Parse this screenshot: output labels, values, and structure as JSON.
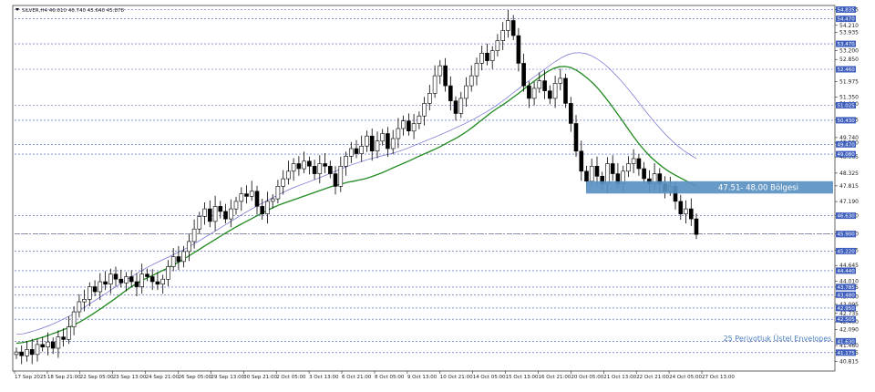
{
  "chart_data": {
    "type": "candlestick",
    "symbol_info": "SILVER,H4  46.610 46.740 45.640 45.878",
    "ylim": [
      40.515,
      55.0
    ],
    "price_ticks": [
      "54.835",
      "54.210",
      "53.935",
      "53.200",
      "52.850",
      "51.975",
      "51.350",
      "51.080",
      "50.445",
      "49.740",
      "49.530",
      "48.965",
      "48.325",
      "47.815",
      "47.190",
      "46.630",
      "45.900",
      "45.245",
      "44.645",
      "44.010",
      "43.785",
      "43.400",
      "43.095",
      "42.735",
      "42.400",
      "42.090",
      "41.460",
      "41.175",
      "40.815"
    ],
    "level_lines": [
      {
        "price": 54.835,
        "label": "54.835"
      },
      {
        "price": 54.47,
        "label": "54.470"
      },
      {
        "price": 53.47,
        "label": "53.470"
      },
      {
        "price": 52.46,
        "label": "52.460"
      },
      {
        "price": 51.025,
        "label": "51.025"
      },
      {
        "price": 50.43,
        "label": "50.430"
      },
      {
        "price": 49.47,
        "label": "49.470"
      },
      {
        "price": 49.08,
        "label": "49.080"
      },
      {
        "price": 46.63,
        "label": "46.630"
      },
      {
        "price": 45.9,
        "label": "45.900"
      },
      {
        "price": 45.22,
        "label": "45.220"
      },
      {
        "price": 44.44,
        "label": "44.440"
      },
      {
        "price": 43.785,
        "label": "43.785"
      },
      {
        "price": 43.48,
        "label": "43.480"
      },
      {
        "price": 42.95,
        "label": "42.950"
      },
      {
        "price": 42.505,
        "label": "42.505"
      },
      {
        "price": 41.63,
        "label": "41.630"
      },
      {
        "price": 41.175,
        "label": "41.175"
      }
    ],
    "current_price": 45.9,
    "time_labels": [
      "17 Sep 2025",
      "18 Sep 21:00",
      "22 Sep 05:00",
      "23 Sep 13:00",
      "24 Sep 21:00",
      "26 Sep 05:00",
      "29 Sep 13:00",
      "30 Sep 21:00",
      "2 Oct 05:00",
      "3 Oct 13:00",
      "6 Oct 21:00",
      "8 Oct 05:00",
      "9 Oct 13:00",
      "10 Oct 21:00",
      "14 Oct 05:00",
      "15 Oct 13:00",
      "16 Oct 21:00",
      "20 Oct 05:00",
      "21 Oct 13:00",
      "22 Oct 21:00",
      "24 Oct 05:00",
      "27 Oct 13:00"
    ],
    "zone": {
      "label": "47.51- 48,00 Bölgesi",
      "low": 47.51,
      "high": 48.0
    },
    "envelope_label": "25 Periyotluk Üstel Envelopes",
    "closes": [
      41.2,
      41.05,
      41.3,
      41.1,
      41.5,
      41.4,
      41.6,
      41.35,
      41.8,
      41.7,
      42.2,
      42.8,
      43.2,
      43.3,
      43.8,
      43.6,
      44.0,
      43.9,
      44.3,
      44.1,
      43.95,
      44.2,
      44.0,
      43.8,
      44.3,
      44.2,
      44.0,
      43.9,
      44.1,
      44.6,
      45.0,
      44.8,
      45.2,
      45.6,
      46.1,
      46.6,
      46.9,
      46.4,
      47.0,
      46.8,
      46.5,
      46.9,
      47.2,
      47.5,
      47.4,
      47.6,
      47.0,
      46.7,
      47.2,
      47.3,
      47.8,
      48.1,
      48.4,
      48.7,
      48.5,
      48.8,
      48.6,
      48.3,
      48.7,
      48.6,
      48.3,
      47.8,
      48.6,
      49.0,
      49.3,
      49.1,
      49.4,
      49.8,
      49.2,
      49.6,
      49.9,
      49.3,
      49.7,
      50.1,
      50.4,
      50.0,
      50.3,
      50.6,
      51.1,
      51.5,
      52.2,
      52.6,
      51.8,
      51.2,
      50.7,
      51.3,
      51.8,
      52.2,
      52.7,
      53.1,
      52.8,
      53.2,
      53.6,
      54.0,
      54.4,
      53.8,
      52.7,
      51.8,
      51.3,
      51.7,
      52.0,
      51.6,
      51.3,
      51.9,
      52.1,
      51.1,
      50.3,
      49.2,
      48.4,
      48.0,
      48.6,
      48.2,
      47.9,
      48.7,
      48.3,
      47.9,
      48.4,
      48.7,
      48.9,
      48.5,
      48.1,
      47.9,
      48.3,
      47.9,
      47.6,
      47.8,
      47.2,
      46.7,
      46.9,
      46.5,
      45.88
    ],
    "ema_inner": [
      41.55,
      41.57,
      41.62,
      41.68,
      41.75,
      41.82,
      41.9,
      41.98,
      42.07,
      42.16,
      42.27,
      42.39,
      42.52,
      42.66,
      42.81,
      42.96,
      43.12,
      43.28,
      43.45,
      43.62,
      43.78,
      43.92,
      44.05,
      44.16,
      44.27,
      44.38,
      44.49,
      44.61,
      44.73,
      44.86,
      45.0,
      45.14,
      45.28,
      45.43,
      45.57,
      45.71,
      45.85,
      45.99,
      46.12,
      46.25,
      46.37,
      46.49,
      46.61,
      46.73,
      46.85,
      46.96,
      47.06,
      47.14,
      47.22,
      47.3,
      47.38,
      47.46,
      47.54,
      47.62,
      47.7,
      47.78,
      47.84,
      47.9,
      47.96,
      48.0,
      48.05,
      48.1,
      48.17,
      48.25,
      48.34,
      48.44,
      48.54,
      48.64,
      48.74,
      48.84,
      48.95,
      49.05,
      49.15,
      49.25,
      49.36,
      49.48,
      49.6,
      49.72,
      49.86,
      50.01,
      50.18,
      50.36,
      50.54,
      50.72,
      50.88,
      51.03,
      51.18,
      51.35,
      51.52,
      51.7,
      51.88,
      52.05,
      52.22,
      52.37,
      52.49,
      52.56,
      52.57,
      52.53,
      52.42,
      52.27,
      52.09,
      51.88,
      51.64,
      51.36,
      51.06,
      50.75,
      50.43,
      50.1,
      49.78,
      49.48,
      49.21,
      48.97,
      48.77,
      48.58,
      48.42,
      48.28,
      48.16,
      48.04,
      47.92,
      47.8
    ],
    "ema_outer": [
      41.9,
      41.92,
      41.98,
      42.05,
      42.13,
      42.22,
      42.32,
      42.43,
      42.55,
      42.68,
      42.82,
      42.97,
      43.12,
      43.28,
      43.44,
      43.6,
      43.76,
      43.92,
      44.08,
      44.23,
      44.38,
      44.52,
      44.65,
      44.77,
      44.89,
      45.0,
      45.12,
      45.24,
      45.37,
      45.51,
      45.65,
      45.8,
      45.95,
      46.1,
      46.25,
      46.4,
      46.55,
      46.7,
      46.84,
      46.98,
      47.11,
      47.24,
      47.37,
      47.49,
      47.61,
      47.72,
      47.82,
      47.91,
      48.0,
      48.09,
      48.19,
      48.29,
      48.39,
      48.49,
      48.59,
      48.68,
      48.76,
      48.84,
      48.91,
      48.97,
      49.03,
      49.09,
      49.16,
      49.24,
      49.33,
      49.43,
      49.53,
      49.63,
      49.73,
      49.83,
      49.94,
      50.05,
      50.16,
      50.27,
      50.39,
      50.52,
      50.66,
      50.8,
      50.96,
      51.13,
      51.31,
      51.5,
      51.69,
      51.88,
      52.06,
      52.24,
      52.42,
      52.6,
      52.77,
      52.92,
      53.04,
      53.11,
      53.12,
      53.08,
      52.98,
      52.84,
      52.66,
      52.44,
      52.19,
      51.92,
      51.63,
      51.33,
      51.01,
      50.7,
      50.4,
      50.12,
      49.86,
      49.62,
      49.4,
      49.21,
      49.05,
      48.91
    ]
  }
}
